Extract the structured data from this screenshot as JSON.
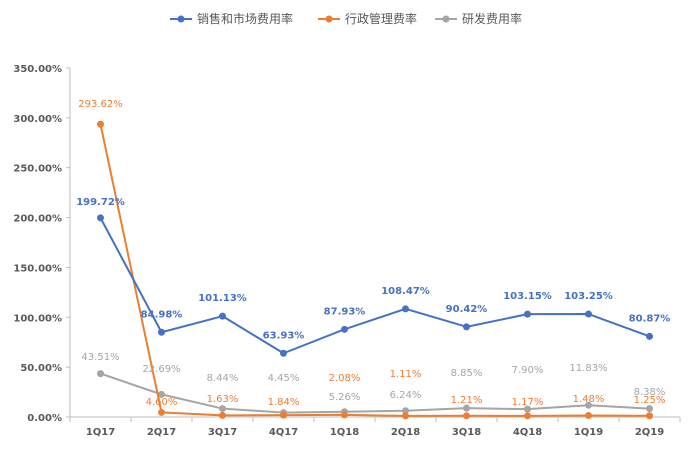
{
  "chart_data": {
    "type": "line",
    "categories": [
      "1Q17",
      "2Q17",
      "3Q17",
      "4Q17",
      "1Q18",
      "2Q18",
      "3Q18",
      "4Q18",
      "1Q19",
      "2Q19"
    ],
    "ylim": [
      0,
      350
    ],
    "y_ticks": [
      0,
      50,
      100,
      150,
      200,
      250,
      300,
      350
    ],
    "y_tick_labels": [
      "0.00%",
      "50.00%",
      "100.00%",
      "150.00%",
      "200.00%",
      "250.00%",
      "300.00%",
      "350.00%"
    ],
    "grid": false,
    "legend_position": "top",
    "series": [
      {
        "name": "销售和市场费用率",
        "color": "#4472C4",
        "values": [
          199.72,
          84.98,
          101.13,
          63.93,
          87.93,
          108.47,
          90.42,
          103.15,
          103.25,
          80.87
        ],
        "labels": [
          "199.72%",
          "84.98%",
          "101.13%",
          "63.93%",
          "87.93%",
          "108.47%",
          "90.42%",
          "103.15%",
          "103.25%",
          "80.87%"
        ]
      },
      {
        "name": "行政管理费率",
        "color": "#ED7D31",
        "values": [
          293.62,
          4.6,
          1.63,
          1.84,
          2.08,
          1.11,
          1.21,
          1.17,
          1.48,
          1.25
        ],
        "labels": [
          "293.62%",
          "4.60%",
          "1.63%",
          "1.84%",
          "2.08%",
          "1.11%",
          "1.21%",
          "1.17%",
          "1.48%",
          "1.25%"
        ]
      },
      {
        "name": "研发费用率",
        "color": "#A5A5A5",
        "values": [
          43.51,
          22.69,
          8.44,
          4.45,
          5.26,
          6.24,
          8.85,
          7.9,
          11.83,
          8.38
        ],
        "labels": [
          "43.51%",
          "22.69%",
          "8.44%",
          "4.45%",
          "5.26%",
          "6.24%",
          "8.85%",
          "7.90%",
          "11.83%",
          "8.38%"
        ]
      }
    ]
  }
}
